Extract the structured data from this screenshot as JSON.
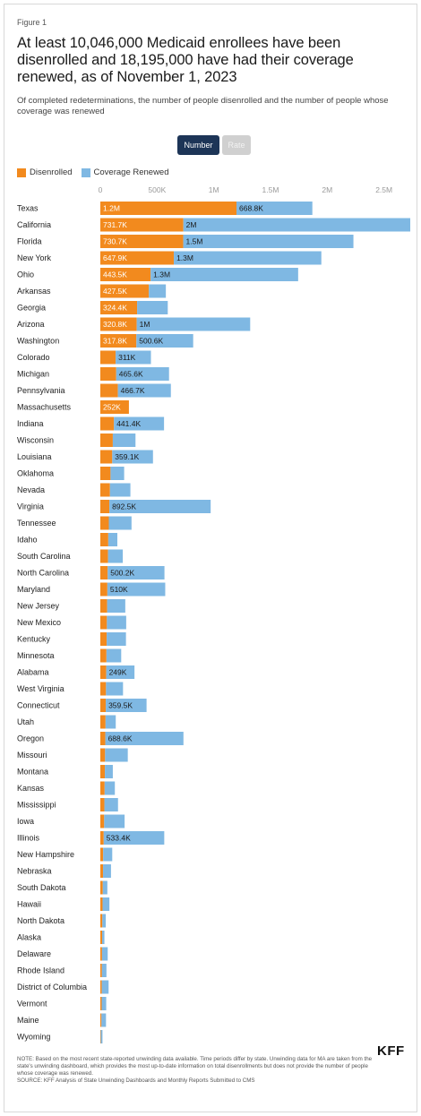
{
  "figure_label": "Figure 1",
  "title": "At least 10,046,000 Medicaid enrollees have been disenrolled and 18,195,000 have had their coverage renewed, as of November 1, 2023",
  "subtitle": "Of completed redeterminations, the number of people disenrolled and the number of people whose coverage was renewed",
  "toggle": {
    "number_label": "Number",
    "rate_label": "Rate"
  },
  "legend": {
    "disenrolled": "Disenrolled",
    "renewed": "Coverage Renewed"
  },
  "colors": {
    "disenrolled": "#f28a1e",
    "renewed": "#7fb8e3",
    "text_light": "#ffffff",
    "text_dark": "#1a1a1a"
  },
  "notes": {
    "note": "NOTE: Based on the most recent state-reported unwinding data available. Time periods differ by state. Unwinding data for MA are taken from the state's unwinding dashboard, which provides the most up-to-date information on total disenrollments but does not provide the number of people whose coverage was renewed.",
    "source": "SOURCE: KFF Analysis of State Unwinding Dashboards and Monthly Reports Submitted to CMS"
  },
  "logo": "KFF",
  "chart_data": {
    "type": "bar",
    "orientation": "horizontal",
    "stacked": true,
    "xlim": [
      0,
      2700000
    ],
    "x_ticks": [
      {
        "value": 0,
        "label": "0"
      },
      {
        "value": 500000,
        "label": "500K"
      },
      {
        "value": 1000000,
        "label": "1M"
      },
      {
        "value": 1500000,
        "label": "1.5M"
      },
      {
        "value": 2000000,
        "label": "2M"
      },
      {
        "value": 2500000,
        "label": "2.5M"
      }
    ],
    "categories": [
      "Texas",
      "California",
      "Florida",
      "New York",
      "Ohio",
      "Arkansas",
      "Georgia",
      "Arizona",
      "Washington",
      "Colorado",
      "Michigan",
      "Pennsylvania",
      "Massachusetts",
      "Indiana",
      "Wisconsin",
      "Louisiana",
      "Oklahoma",
      "Nevada",
      "Virginia",
      "Tennessee",
      "Idaho",
      "South Carolina",
      "North Carolina",
      "Maryland",
      "New Jersey",
      "New Mexico",
      "Kentucky",
      "Minnesota",
      "Alabama",
      "West Virginia",
      "Connecticut",
      "Utah",
      "Oregon",
      "Missouri",
      "Montana",
      "Kansas",
      "Mississippi",
      "Iowa",
      "Illinois",
      "New Hampshire",
      "Nebraska",
      "South Dakota",
      "Hawaii",
      "North Dakota",
      "Alaska",
      "Delaware",
      "Rhode Island",
      "District of Columbia",
      "Vermont",
      "Maine",
      "Wyoming"
    ],
    "series": [
      {
        "name": "Disenrolled",
        "values": [
          1200000,
          731700,
          730700,
          647900,
          443500,
          427500,
          324400,
          320800,
          317800,
          135000,
          140000,
          155000,
          252000,
          120000,
          110000,
          105000,
          90000,
          85000,
          80000,
          75000,
          70000,
          68000,
          65000,
          62000,
          60000,
          58000,
          56000,
          54000,
          52000,
          50000,
          48000,
          46000,
          44000,
          42000,
          40000,
          38000,
          36000,
          34000,
          30000,
          25000,
          24000,
          22000,
          20000,
          18000,
          16000,
          15000,
          14000,
          13000,
          12000,
          10000,
          4000
        ],
        "labels": [
          "1.2M",
          "731.7K",
          "730.7K",
          "647.9K",
          "443.5K",
          "427.5K",
          "324.4K",
          "320.8K",
          "317.8K",
          "",
          "",
          "",
          "252K",
          "",
          "",
          "",
          "",
          "",
          "",
          "",
          "",
          "",
          "",
          "",
          "",
          "",
          "",
          "",
          "",
          "",
          "",
          "",
          "",
          "",
          "",
          "",
          "",
          "",
          "",
          "",
          "",
          "",
          "",
          "",
          "",
          "",
          "",
          "",
          "",
          "",
          ""
        ]
      },
      {
        "name": "Coverage Renewed",
        "values": [
          668800,
          2000000,
          1500000,
          1300000,
          1300000,
          150000,
          270000,
          1000000,
          500600,
          311000,
          465600,
          466700,
          0,
          441400,
          200000,
          359100,
          120000,
          180000,
          892500,
          200000,
          80000,
          130000,
          500200,
          510000,
          160000,
          170000,
          170000,
          130000,
          249000,
          150000,
          359500,
          90000,
          688600,
          200000,
          70000,
          90000,
          120000,
          180000,
          533400,
          80000,
          70000,
          40000,
          60000,
          30000,
          20000,
          50000,
          40000,
          60000,
          40000,
          40000,
          15000
        ],
        "labels": [
          "668.8K",
          "2M",
          "1.5M",
          "1.3M",
          "1.3M",
          "",
          "",
          "1M",
          "500.6K",
          "311K",
          "465.6K",
          "466.7K",
          "",
          "441.4K",
          "",
          "359.1K",
          "",
          "",
          "892.5K",
          "",
          "",
          "",
          "500.2K",
          "510K",
          "",
          "",
          "",
          "",
          "249K",
          "",
          "359.5K",
          "",
          "688.6K",
          "",
          "",
          "",
          "",
          "",
          "533.4K",
          "",
          "",
          "",
          "",
          "",
          "",
          "",
          "",
          "",
          "",
          "",
          ""
        ]
      }
    ]
  }
}
